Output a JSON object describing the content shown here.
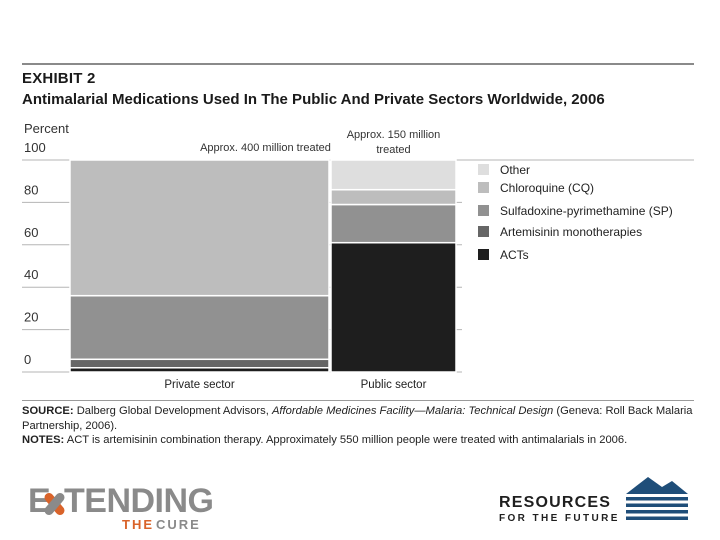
{
  "header": {
    "exhibit": "EXHIBIT 2",
    "title": "Antimalarial Medications Used In The Public And Private Sectors Worldwide, 2006"
  },
  "chart_data": {
    "type": "bar",
    "stacked": true,
    "ylabel": "Percent",
    "ylim": [
      0,
      100
    ],
    "yticks": [
      0,
      20,
      40,
      60,
      80,
      100
    ],
    "categories": [
      "Private sector",
      "Public sector"
    ],
    "bar_annotations": [
      [
        "Approx. 400 million treated"
      ],
      [
        "Approx. 150 million",
        "treated"
      ]
    ],
    "series": [
      {
        "name": "ACTs",
        "color": "#1e1e1e",
        "values": [
          2,
          61
        ]
      },
      {
        "name": "Artemisinin monotherapies",
        "color": "#666666",
        "values": [
          4,
          0
        ]
      },
      {
        "name": "Sulfadoxine-pyrimethamine (SP)",
        "color": "#919191",
        "values": [
          30,
          18
        ]
      },
      {
        "name": "Chloroquine (CQ)",
        "color": "#bdbdbd",
        "values": [
          64,
          7
        ]
      },
      {
        "name": "Other",
        "color": "#dedede",
        "values": [
          0,
          14
        ]
      }
    ],
    "legend_order": [
      "Other",
      "Chloroquine (CQ)",
      "Sulfadoxine-pyrimethamine (SP)",
      "Artemisinin monotherapies",
      "ACTs"
    ],
    "legend_position": "right"
  },
  "footer": {
    "source_label": "SOURCE:",
    "source_pre": " Dalberg Global Development Advisors, ",
    "source_italic": "Affordable Medicines Facility—Malaria: Technical Design",
    "source_post": " (Geneva: Roll Back Malaria Partnership, 2006).",
    "notes_label": "NOTES:",
    "notes_text": " ACT is artemisinin combination therapy. Approximately 550 million people were treated with antimalarials in 2006."
  },
  "logos": {
    "left": {
      "word_pre": "E",
      "word_post": "TENDING",
      "sub_the": "THE",
      "sub_cure": "CURE"
    },
    "right": {
      "line1": "RESOURCES",
      "line2": "FOR THE FUTURE"
    }
  }
}
